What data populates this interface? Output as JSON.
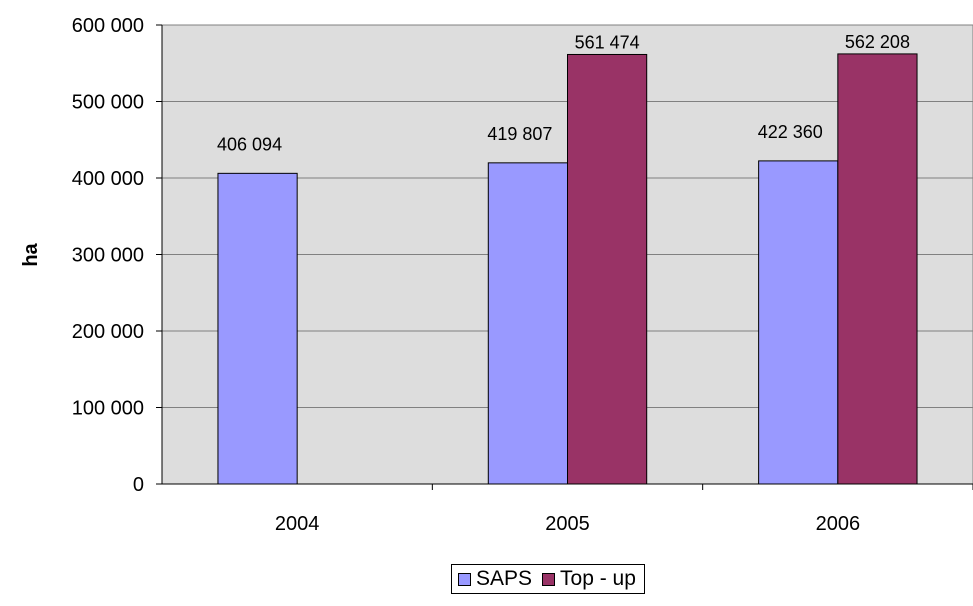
{
  "chart_data": {
    "type": "bar",
    "categories": [
      "2004",
      "2005",
      "2006"
    ],
    "series": [
      {
        "name": "SAPS",
        "values": [
          406094,
          419807,
          422360
        ],
        "labels": [
          "406 094",
          "419 807",
          "422 360"
        ],
        "color": "#9999ff"
      },
      {
        "name": "Top - up",
        "values": [
          null,
          561474,
          562208
        ],
        "labels": [
          "",
          "561 474",
          "562 208"
        ],
        "color": "#993366"
      }
    ],
    "ylabel": "ha",
    "ylim": [
      0,
      600000
    ],
    "yticks": [
      0,
      100000,
      200000,
      300000,
      400000,
      500000,
      600000
    ],
    "ytick_labels": [
      "0",
      "100 000",
      "200 000",
      "300 000",
      "400 000",
      "500 000",
      "600 000"
    ],
    "grid": true,
    "plot_background": "#dddddd",
    "legend_position": "bottom"
  }
}
